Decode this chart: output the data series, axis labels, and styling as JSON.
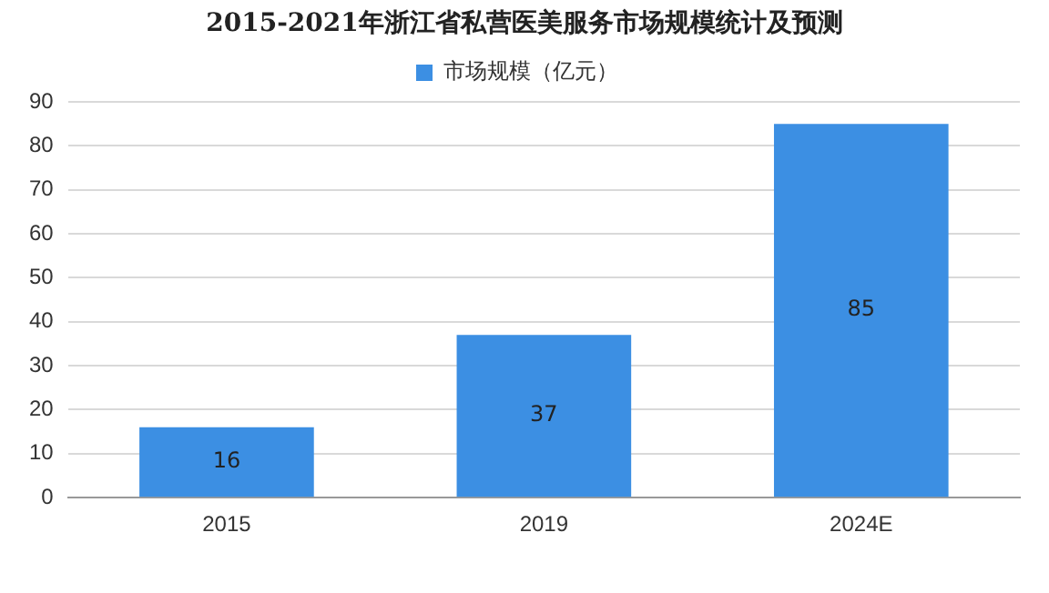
{
  "chart_data": {
    "type": "bar",
    "title": "2015-2021年浙江省私营医美服务市场规模统计及预测",
    "categories": [
      "2015",
      "2019",
      "2024E"
    ],
    "series": [
      {
        "name": "市场规模（亿元）",
        "color": "#3c8fe3",
        "values": [
          16,
          37,
          85
        ]
      }
    ],
    "ylim": [
      0,
      90
    ],
    "yticks": [
      0,
      10,
      20,
      30,
      40,
      50,
      60,
      70,
      80,
      90
    ],
    "grid": "y",
    "legend": "top",
    "data_labels": true
  }
}
